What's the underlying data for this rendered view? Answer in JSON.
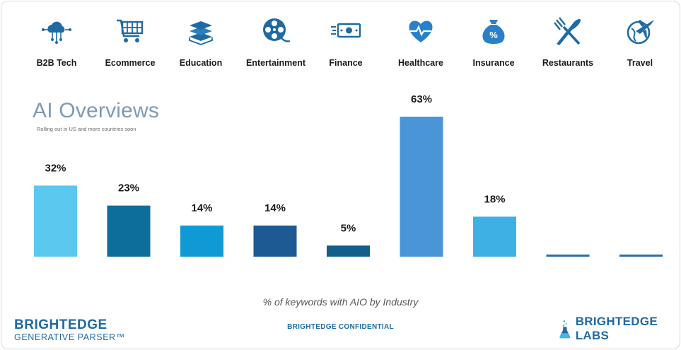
{
  "categories": [
    {
      "label": "B2B Tech",
      "icon": "cloud-network-icon"
    },
    {
      "label": "Ecommerce",
      "icon": "shopping-cart-icon"
    },
    {
      "label": "Education",
      "icon": "books-icon"
    },
    {
      "label": "Entertainment",
      "icon": "film-reel-icon"
    },
    {
      "label": "Finance",
      "icon": "money-bill-icon"
    },
    {
      "label": "Healthcare",
      "icon": "heart-pulse-icon"
    },
    {
      "label": "Insurance",
      "icon": "money-bag-percent-icon"
    },
    {
      "label": "Restaurants",
      "icon": "fork-knife-icon"
    },
    {
      "label": "Travel",
      "icon": "airplane-globe-icon"
    }
  ],
  "header": {
    "title": "AI Overviews",
    "subtitle": "Rolling out in US and more countries soon"
  },
  "chart_data": {
    "type": "bar",
    "categories": [
      "B2B Tech",
      "Ecommerce",
      "Education",
      "Entertainment",
      "Finance",
      "Healthcare",
      "Insurance",
      "Restaurants",
      "Travel"
    ],
    "values": [
      32,
      23,
      14,
      14,
      5,
      63,
      18,
      0,
      0
    ],
    "value_labels": [
      "32%",
      "23%",
      "14%",
      "14%",
      "5%",
      "63%",
      "18%",
      "",
      ""
    ],
    "ylim": [
      0,
      63
    ],
    "colors": [
      "#5bc8f0",
      "#0e6e9b",
      "#0f9ad6",
      "#1d5a93",
      "#12608a",
      "#4a95d8",
      "#3fb0e4",
      "#2a6ea6",
      "#2a6ea6"
    ],
    "xlabel": "% of keywords with AIO by Industry"
  },
  "footer": {
    "brand_line1": "BRIGHTEDGE",
    "brand_line2": "GENERATIVE PARSER™",
    "confidential": "BRIGHTEDGE CONFIDENTIAL",
    "labs": "BRIGHTEDGE LABS"
  },
  "colors": {
    "icon": "#1f6aa3",
    "brand": "#1f6aa3"
  }
}
